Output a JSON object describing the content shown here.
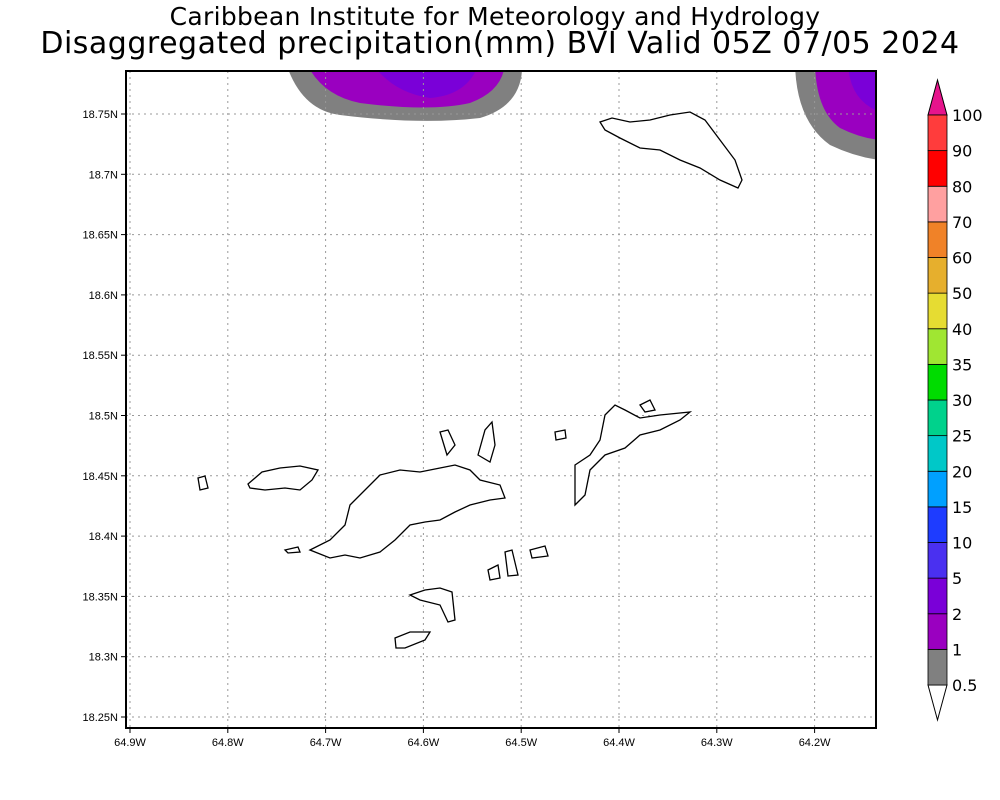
{
  "title_line1": "Caribbean Institute for Meteorology and Hydrology",
  "title_line2": "Disaggregated precipitation(mm) BVI Valid 05Z 07/05 2024",
  "lon_ticks": [
    "64.9W",
    "64.8W",
    "64.7W",
    "64.6W",
    "64.5W",
    "64.4W",
    "64.3W",
    "64.2W"
  ],
  "lat_ticks": [
    "18.75N",
    "18.7N",
    "18.65N",
    "18.6N",
    "18.55N",
    "18.5N",
    "18.45N",
    "18.4N",
    "18.35N",
    "18.3N",
    "18.25N"
  ],
  "colorbar": {
    "labels": [
      "0.5",
      "1",
      "2",
      "5",
      "10",
      "15",
      "20",
      "25",
      "30",
      "35",
      "40",
      "50",
      "60",
      "70",
      "80",
      "90",
      "100"
    ],
    "colors": [
      "#808080",
      "#9a00c0",
      "#7a00d8",
      "#4a30f0",
      "#1e3cff",
      "#00a0ff",
      "#00c8c8",
      "#00d28c",
      "#00dc00",
      "#a0e632",
      "#e6dc32",
      "#e6af2d",
      "#f08228",
      "#ffa0a0",
      "#ff0000",
      "#ff3c3c"
    ],
    "over_color": "#e6148c",
    "under_color": "#ffffff"
  }
}
